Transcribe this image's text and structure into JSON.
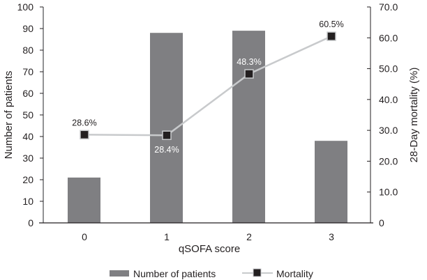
{
  "chart_data": {
    "type": "bar+line",
    "title": "",
    "xlabel": "qSOFA score",
    "ylabel_left": "Number of patients",
    "ylabel_right": "28-Day mortality (%)",
    "categories": [
      "0",
      "1",
      "2",
      "3"
    ],
    "ylim_left": [
      0,
      100
    ],
    "yticks_left": [
      "0",
      "10",
      "20",
      "30",
      "40",
      "50",
      "60",
      "70",
      "80",
      "90",
      "100"
    ],
    "ylim_right": [
      0,
      70
    ],
    "yticks_right": [
      "0",
      "10.0",
      "20.0",
      "30.0",
      "40.0",
      "50.0",
      "60.0",
      "70.0"
    ],
    "series": [
      {
        "name": "Number of patients",
        "type": "bar",
        "axis": "left",
        "values": [
          21,
          88,
          89,
          38
        ],
        "color": "#7f7f82"
      },
      {
        "name": "Mortality",
        "type": "line",
        "axis": "right",
        "values": [
          28.6,
          28.4,
          48.3,
          60.5
        ],
        "labels": [
          "28.6%",
          "28.4%",
          "48.3%",
          "60.5%"
        ],
        "line_color": "#c8cacc",
        "marker_color": "#231f20"
      }
    ],
    "grid": false,
    "legend": "bottom"
  }
}
